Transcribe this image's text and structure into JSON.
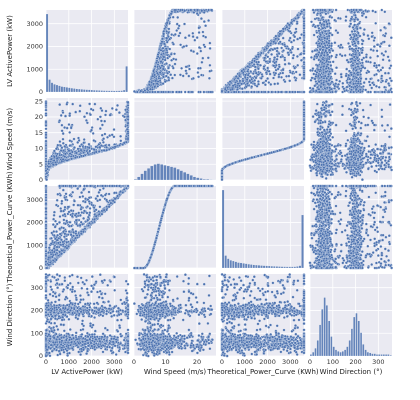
{
  "chart_data": {
    "type": "scatter",
    "variables": [
      {
        "key": "lv",
        "label": "LV ActivePower (kW)",
        "range": [
          0,
          3600
        ],
        "ticks": [
          0,
          1000,
          2000,
          3000
        ],
        "ticks_y": [
          0,
          1000,
          2000,
          3000
        ]
      },
      {
        "key": "ws",
        "label": "Wind Speed (m/s)",
        "range": [
          0,
          26
        ],
        "ticks": [
          0,
          10,
          20
        ],
        "ticks_y": [
          0,
          5,
          10,
          15,
          20,
          25
        ]
      },
      {
        "key": "tp",
        "label": "Theoretical_Power_Curve (KWh)",
        "range": [
          0,
          3600
        ],
        "ticks": [
          0,
          1000,
          2000,
          3000
        ],
        "ticks_y": [
          0,
          1000,
          2000,
          3000
        ]
      },
      {
        "key": "wd",
        "label": "Wind Direction (°)",
        "range": [
          0,
          360
        ],
        "ticks": [
          0,
          100,
          200,
          300
        ],
        "ticks_y": [
          0,
          100,
          200,
          300
        ]
      }
    ],
    "diagonal_type": "histogram",
    "histograms": {
      "lv": [
        1.0,
        0.16,
        0.12,
        0.1,
        0.09,
        0.08,
        0.07,
        0.065,
        0.06,
        0.055,
        0.05,
        0.045,
        0.04,
        0.038,
        0.035,
        0.032,
        0.03,
        0.028,
        0.026,
        0.024,
        0.022,
        0.02,
        0.019,
        0.018,
        0.017,
        0.016,
        0.016,
        0.015,
        0.015,
        0.016,
        0.018,
        0.025,
        0.33
      ],
      "ws": [
        0.01,
        0.04,
        0.08,
        0.12,
        0.15,
        0.18,
        0.2,
        0.21,
        0.2,
        0.19,
        0.18,
        0.17,
        0.16,
        0.14,
        0.12,
        0.1,
        0.08,
        0.06,
        0.04,
        0.03,
        0.02,
        0.01,
        0.01,
        0.005,
        0.002
      ],
      "tp": [
        1.0,
        0.16,
        0.12,
        0.1,
        0.09,
        0.08,
        0.07,
        0.065,
        0.06,
        0.055,
        0.05,
        0.045,
        0.04,
        0.038,
        0.035,
        0.032,
        0.03,
        0.028,
        0.026,
        0.024,
        0.022,
        0.02,
        0.019,
        0.018,
        0.017,
        0.016,
        0.016,
        0.016,
        0.017,
        0.02,
        0.03,
        0.68
      ],
      "wd": [
        0.02,
        0.05,
        0.1,
        0.2,
        0.4,
        0.6,
        0.75,
        0.65,
        0.45,
        0.25,
        0.12,
        0.08,
        0.06,
        0.05,
        0.06,
        0.08,
        0.12,
        0.2,
        0.35,
        0.5,
        0.55,
        0.45,
        0.3,
        0.15,
        0.08,
        0.05,
        0.04,
        0.03,
        0.03,
        0.02,
        0.02,
        0.02,
        0.02,
        0.02,
        0.02,
        0.01
      ]
    },
    "point_color": "#4c72b0",
    "background_color": "#eaeaf2",
    "grid": true
  }
}
